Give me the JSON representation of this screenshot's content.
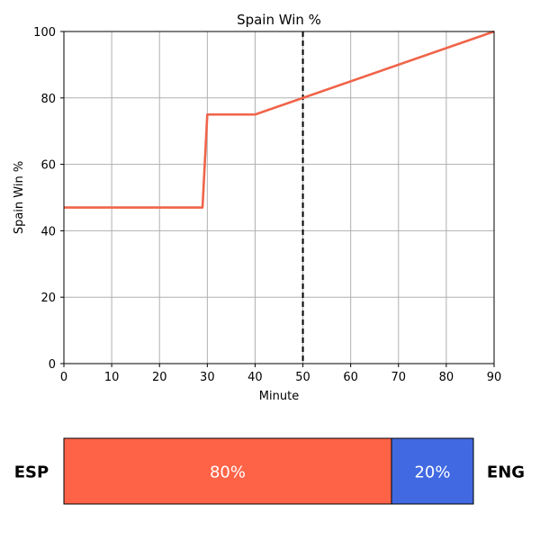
{
  "chart_data": [
    {
      "type": "line",
      "title": "Spain Win %",
      "xlabel": "Minute",
      "ylabel": "Spain Win %",
      "xlim": [
        0,
        90
      ],
      "ylim": [
        0,
        100
      ],
      "x_ticks": [
        0,
        10,
        20,
        30,
        40,
        50,
        60,
        70,
        80,
        90
      ],
      "y_ticks": [
        0,
        20,
        40,
        60,
        80,
        100
      ],
      "grid": true,
      "series": [
        {
          "color": "#f06449",
          "x": [
            0,
            29,
            30,
            40,
            90
          ],
          "y": [
            47,
            47,
            75,
            75,
            100
          ]
        }
      ],
      "vline": {
        "x": 50,
        "style": "dashed",
        "color": "#000000"
      }
    },
    {
      "type": "bar",
      "orientation": "horizontal-stacked",
      "categories": [
        "ESP",
        "ENG"
      ],
      "values": [
        80,
        20
      ],
      "labels": [
        "80%",
        "20%"
      ],
      "colors": [
        "#ff6347",
        "#4169e1"
      ]
    }
  ]
}
